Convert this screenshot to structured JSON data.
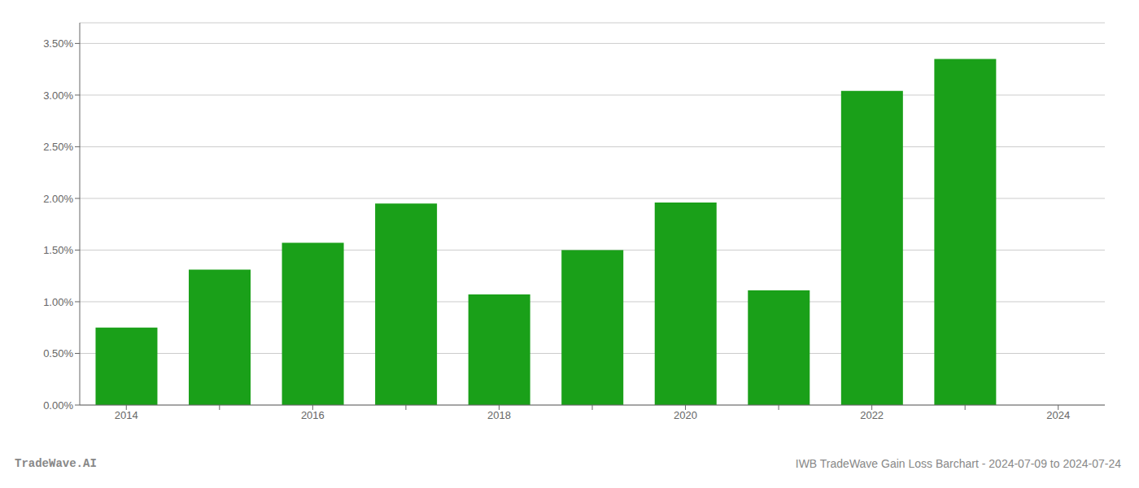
{
  "chart_data": {
    "type": "bar",
    "categories": [
      "2014",
      null,
      "2016",
      null,
      "2018",
      null,
      "2020",
      null,
      "2022",
      null,
      "2024"
    ],
    "values": [
      0.0075,
      0.0131,
      0.0157,
      0.0195,
      0.0107,
      0.015,
      0.0196,
      0.0111,
      0.0304,
      0.0335,
      null
    ],
    "color": "#1aa019",
    "ylim": [
      0,
      0.037
    ],
    "yticks": [
      {
        "value": 0.0,
        "label": "0.00%"
      },
      {
        "value": 0.005,
        "label": "0.50%"
      },
      {
        "value": 0.01,
        "label": "1.00%"
      },
      {
        "value": 0.015,
        "label": "1.50%"
      },
      {
        "value": 0.02,
        "label": "2.00%"
      },
      {
        "value": 0.025,
        "label": "2.50%"
      },
      {
        "value": 0.03,
        "label": "3.00%"
      },
      {
        "value": 0.035,
        "label": "3.50%"
      }
    ],
    "grid": true,
    "annotations": [
      "TradeWave.AI",
      "IWB TradeWave Gain Loss Barchart - 2024-07-09 to 2024-07-24"
    ]
  }
}
